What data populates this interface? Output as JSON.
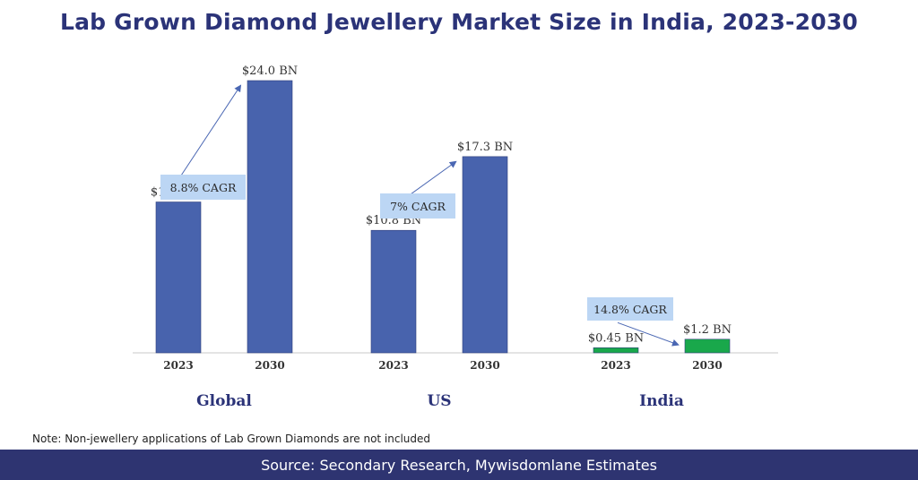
{
  "title": "Lab Grown Diamond Jewellery Market Size in India, 2023-2030",
  "note": "Note: Non-jewellery applications of Lab Grown Diamonds are not included",
  "source": "Source: Secondary Research, Mywisdomlane Estimates",
  "colors": {
    "title": "#2b3378",
    "bar_blue": "#4863ad",
    "bar_green": "#19a84b",
    "cagr_box": "#bcd6f4",
    "arrow": "#4a67b3",
    "footer": "#2e3471"
  },
  "chart_data": {
    "type": "bar",
    "unit": "$ BN",
    "ylim": [
      0,
      24
    ],
    "groups": [
      {
        "name": "Global",
        "cagr": "8.8% CAGR",
        "color": "#4863ad",
        "bars": [
          {
            "year": "2023",
            "value": 13.3,
            "label": "$13.3 BN"
          },
          {
            "year": "2030",
            "value": 24.0,
            "label": "$24.0 BN"
          }
        ]
      },
      {
        "name": "US",
        "cagr": "7% CAGR",
        "color": "#4863ad",
        "bars": [
          {
            "year": "2023",
            "value": 10.8,
            "label": "$10.8 BN"
          },
          {
            "year": "2030",
            "value": 17.3,
            "label": "$17.3 BN"
          }
        ]
      },
      {
        "name": "India",
        "cagr": "14.8% CAGR",
        "color": "#19a84b",
        "bars": [
          {
            "year": "2023",
            "value": 0.45,
            "label": "$0.45 BN"
          },
          {
            "year": "2030",
            "value": 1.2,
            "label": "$1.2 BN"
          }
        ]
      }
    ]
  }
}
